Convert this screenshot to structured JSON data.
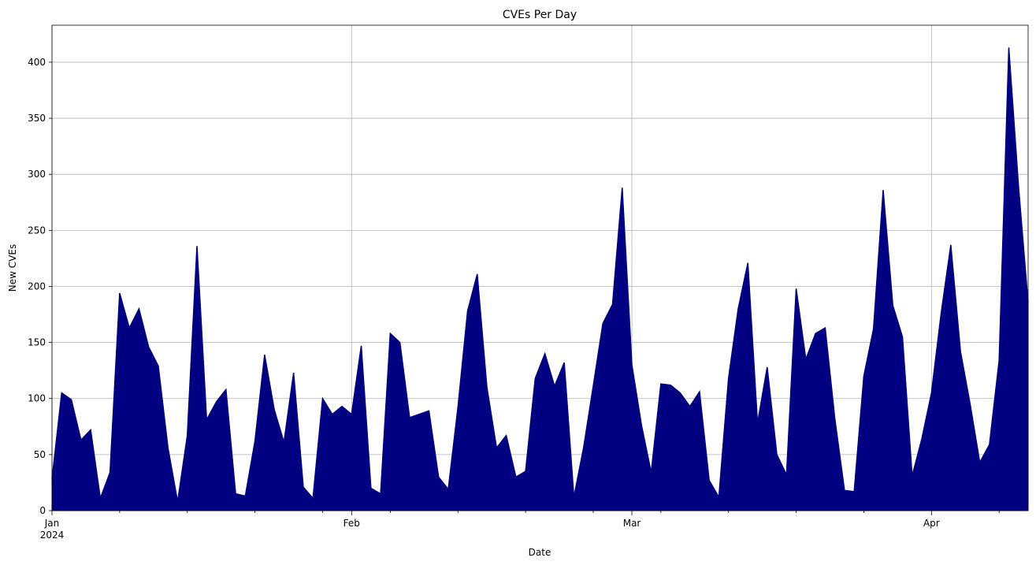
{
  "chart_data": {
    "type": "area",
    "title": "CVEs Per Day",
    "xlabel": "Date",
    "ylabel": "New CVEs",
    "ylim": [
      0,
      433
    ],
    "xlim": [
      "2024-01-01",
      "2024-04-11"
    ],
    "grid": true,
    "fill_color": "#000080",
    "x_tick_labels": [
      {
        "date": "2024-01-01",
        "label": "Jan",
        "sublabel": "2024"
      },
      {
        "date": "2024-02-01",
        "label": "Feb",
        "sublabel": ""
      },
      {
        "date": "2024-03-01",
        "label": "Mar",
        "sublabel": ""
      },
      {
        "date": "2024-04-01",
        "label": "Apr",
        "sublabel": ""
      }
    ],
    "y_ticks": [
      0,
      50,
      100,
      150,
      200,
      250,
      300,
      350,
      400
    ],
    "series": [
      {
        "x": [
          "2024-01-01",
          "2024-01-02",
          "2024-01-03",
          "2024-01-04",
          "2024-01-05",
          "2024-01-06",
          "2024-01-07",
          "2024-01-08",
          "2024-01-09",
          "2024-01-10",
          "2024-01-11",
          "2024-01-12",
          "2024-01-13",
          "2024-01-14",
          "2024-01-15",
          "2024-01-16",
          "2024-01-17",
          "2024-01-18",
          "2024-01-19",
          "2024-01-20",
          "2024-01-21",
          "2024-01-22",
          "2024-01-23",
          "2024-01-24",
          "2024-01-25",
          "2024-01-26",
          "2024-01-27",
          "2024-01-28",
          "2024-01-29",
          "2024-01-30",
          "2024-01-31",
          "2024-02-01",
          "2024-02-02",
          "2024-02-03",
          "2024-02-04",
          "2024-02-05",
          "2024-02-06",
          "2024-02-07",
          "2024-02-08",
          "2024-02-09",
          "2024-02-10",
          "2024-02-11",
          "2024-02-12",
          "2024-02-13",
          "2024-02-14",
          "2024-02-15",
          "2024-02-16",
          "2024-02-17",
          "2024-02-18",
          "2024-02-19",
          "2024-02-20",
          "2024-02-21",
          "2024-02-22",
          "2024-02-23",
          "2024-02-24",
          "2024-02-25",
          "2024-02-26",
          "2024-02-27",
          "2024-02-28",
          "2024-02-29",
          "2024-03-01",
          "2024-03-02",
          "2024-03-03",
          "2024-03-04",
          "2024-03-05",
          "2024-03-06",
          "2024-03-07",
          "2024-03-08",
          "2024-03-09",
          "2024-03-10",
          "2024-03-11",
          "2024-03-12",
          "2024-03-13",
          "2024-03-14",
          "2024-03-15",
          "2024-03-16",
          "2024-03-17",
          "2024-03-18",
          "2024-03-19",
          "2024-03-20",
          "2024-03-21",
          "2024-03-22",
          "2024-03-23",
          "2024-03-24",
          "2024-03-25",
          "2024-03-26",
          "2024-03-27",
          "2024-03-28",
          "2024-03-29",
          "2024-03-30",
          "2024-03-31",
          "2024-04-01",
          "2024-04-02",
          "2024-04-03",
          "2024-04-04",
          "2024-04-05",
          "2024-04-06",
          "2024-04-07",
          "2024-04-08",
          "2024-04-09",
          "2024-04-10",
          "2024-04-11"
        ],
        "values": [
          28,
          105,
          99,
          63,
          72,
          11,
          34,
          194,
          163,
          180,
          146,
          129,
          56,
          8,
          67,
          236,
          81,
          97,
          108,
          15,
          13,
          62,
          139,
          90,
          61,
          123,
          21,
          11,
          100,
          86,
          93,
          86,
          147,
          20,
          15,
          158,
          150,
          83,
          86,
          89,
          30,
          19,
          92,
          178,
          211,
          110,
          56,
          67,
          30,
          35,
          118,
          140,
          111,
          132,
          12,
          56,
          111,
          167,
          184,
          288,
          130,
          76,
          34,
          113,
          112,
          105,
          93,
          106,
          27,
          12,
          118,
          180,
          221,
          78,
          128,
          50,
          32,
          198,
          135,
          158,
          163,
          82,
          18,
          17,
          120,
          162,
          286,
          183,
          155,
          31,
          64,
          105,
          176,
          237,
          142,
          95,
          43,
          59,
          134,
          413,
          290,
          185
        ]
      }
    ]
  }
}
